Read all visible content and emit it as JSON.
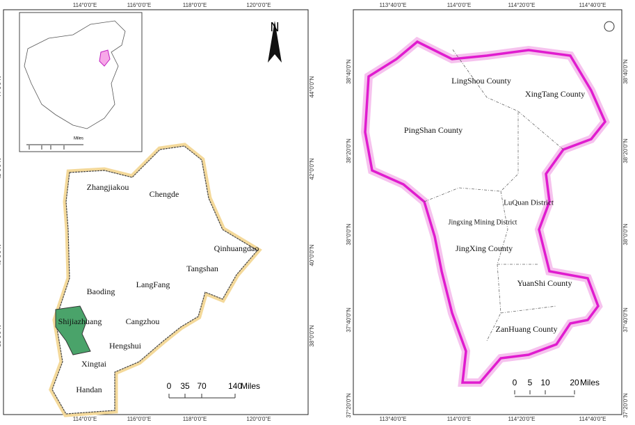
{
  "left_map": {
    "lon_labels": [
      "114°0'0\"E",
      "116°0'0\"E",
      "118°0'0\"E",
      "120°0'0\"E"
    ],
    "lat_labels": [
      "44°0'0\"N",
      "42°0'0\"N",
      "40°0'0\"N",
      "38°0'0\"N"
    ],
    "regions": [
      "Zhangjiakou",
      "Chengde",
      "Qinhuangdao",
      "Tangshan",
      "Baoding",
      "LangFang",
      "Shijiazhuang",
      "Cangzhou",
      "Hengshui",
      "Xingtai",
      "Handan"
    ],
    "north": "N",
    "scale_bar": {
      "ticks": [
        "0",
        "35",
        "70",
        "140"
      ],
      "unit": "Miles"
    },
    "inset": {
      "scale_ticks": [
        "0",
        "250",
        "500",
        "1,000"
      ],
      "unit": "Miles"
    }
  },
  "right_map": {
    "lon_labels": [
      "113°40'0\"E",
      "114°0'0\"E",
      "114°20'0\"E",
      "114°40'0\"E"
    ],
    "lat_labels": [
      "38°40'0\"N",
      "38°20'0\"N",
      "38°0'0\"N",
      "37°40'0\"N",
      "37°20'0\"N"
    ],
    "regions": [
      "LingShou County",
      "XingTang County",
      "PingShan County",
      "LuQuan District",
      "Jingxing Mining District",
      "JingXing County",
      "YuanShi County",
      "ZanHuang County"
    ],
    "scale_bar": {
      "ticks": [
        "0",
        "5",
        "10",
        "20"
      ],
      "unit": "Miles"
    }
  }
}
